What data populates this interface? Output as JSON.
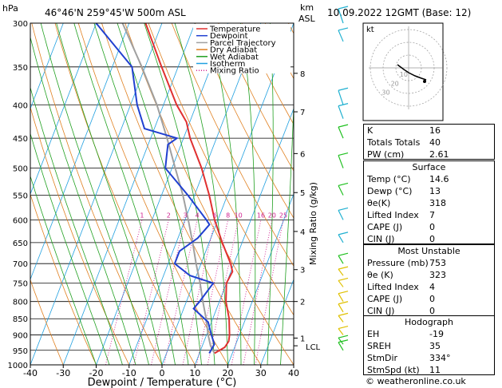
{
  "header": {
    "pressure_unit": "hPa",
    "location": "46°46'N  259°45'W  500m  ASL",
    "km_label": "km",
    "asl_label": "ASL",
    "datetime": "10.09.2022  12GMT  (Base: 12)"
  },
  "legend": [
    "Temperature",
    "Dewpoint",
    "Parcel Trajectory",
    "Dry Adiabat",
    "Wet Adiabat",
    "Isotherm",
    "Mixing Ratio"
  ],
  "colors": {
    "temperature": "#e03030",
    "dewpoint": "#2040d0",
    "parcel": "#a0a0a0",
    "dry_adiabat": "#e08020",
    "wet_adiabat": "#20a020",
    "isotherm": "#20a0e0",
    "mixing_ratio": "#d02090",
    "wind_low": "#e0c000",
    "wind_mid": "#20c020",
    "wind_high": "#20b0d0"
  },
  "chart_data": {
    "type": "line",
    "xlabel": "Dewpoint / Temperature (°C)",
    "ylabel": "hPa",
    "xlim": [
      -40,
      40
    ],
    "x_ticks": [
      -40,
      -30,
      -20,
      -10,
      0,
      10,
      20,
      30,
      40
    ],
    "pressure_ticks": [
      300,
      350,
      400,
      450,
      500,
      550,
      600,
      650,
      700,
      750,
      800,
      850,
      900,
      950,
      1000
    ],
    "km_ticks": [
      {
        "km": "8",
        "p": 358
      },
      {
        "km": "7",
        "p": 410
      },
      {
        "km": "6",
        "p": 475
      },
      {
        "km": "5",
        "p": 545
      },
      {
        "km": "4",
        "p": 625
      },
      {
        "km": "3",
        "p": 715
      },
      {
        "km": "2",
        "p": 800
      },
      {
        "km": "1",
        "p": 910
      }
    ],
    "lcl_label": "LCL",
    "lcl_pressure": 935,
    "mixing_ratio_label": "Mixing Ratio (g/kg)",
    "mixing_ratio_values": [
      "1",
      "2",
      "3",
      "4",
      "6",
      "8",
      "10",
      "16",
      "20",
      "25"
    ],
    "series": [
      {
        "name": "Temperature",
        "points": [
          {
            "p": 960,
            "t": 14.6
          },
          {
            "p": 940,
            "t": 17.0
          },
          {
            "p": 920,
            "t": 17.5
          },
          {
            "p": 900,
            "t": 17.0
          },
          {
            "p": 850,
            "t": 15.0
          },
          {
            "p": 800,
            "t": 12.0
          },
          {
            "p": 750,
            "t": 10.0
          },
          {
            "p": 720,
            "t": 10.5
          },
          {
            "p": 700,
            "t": 9.0
          },
          {
            "p": 650,
            "t": 4.0
          },
          {
            "p": 600,
            "t": -1.0
          },
          {
            "p": 550,
            "t": -5.5
          },
          {
            "p": 500,
            "t": -11.0
          },
          {
            "p": 450,
            "t": -18.0
          },
          {
            "p": 425,
            "t": -21.0
          },
          {
            "p": 400,
            "t": -26.0
          },
          {
            "p": 350,
            "t": -35.0
          },
          {
            "p": 300,
            "t": -45.0
          }
        ]
      },
      {
        "name": "Dewpoint",
        "points": [
          {
            "p": 960,
            "t": 13.0
          },
          {
            "p": 930,
            "t": 13.5
          },
          {
            "p": 900,
            "t": 11.5
          },
          {
            "p": 860,
            "t": 9.0
          },
          {
            "p": 820,
            "t": 3.0
          },
          {
            "p": 800,
            "t": 4.0
          },
          {
            "p": 750,
            "t": 6.0
          },
          {
            "p": 730,
            "t": -2.0
          },
          {
            "p": 700,
            "t": -8.0
          },
          {
            "p": 670,
            "t": -8.0
          },
          {
            "p": 640,
            "t": -4.0
          },
          {
            "p": 610,
            "t": -2.0
          },
          {
            "p": 600,
            "t": -3.5
          },
          {
            "p": 550,
            "t": -12.0
          },
          {
            "p": 500,
            "t": -22.0
          },
          {
            "p": 480,
            "t": -23.0
          },
          {
            "p": 460,
            "t": -24.0
          },
          {
            "p": 450,
            "t": -22.0
          },
          {
            "p": 435,
            "t": -33.0
          },
          {
            "p": 400,
            "t": -38.0
          },
          {
            "p": 350,
            "t": -44.0
          },
          {
            "p": 300,
            "t": -60.0
          }
        ]
      },
      {
        "name": "Parcel Trajectory",
        "points": [
          {
            "p": 960,
            "t": 14.6
          },
          {
            "p": 935,
            "t": 12.5
          },
          {
            "p": 900,
            "t": 10.5
          },
          {
            "p": 850,
            "t": 8.0
          },
          {
            "p": 800,
            "t": 5.0
          },
          {
            "p": 750,
            "t": 2.0
          },
          {
            "p": 700,
            "t": -1.5
          },
          {
            "p": 650,
            "t": -5.0
          },
          {
            "p": 600,
            "t": -9.0
          },
          {
            "p": 550,
            "t": -13.5
          },
          {
            "p": 500,
            "t": -19.0
          },
          {
            "p": 450,
            "t": -25.0
          },
          {
            "p": 400,
            "t": -32.0
          },
          {
            "p": 350,
            "t": -41.0
          },
          {
            "p": 300,
            "t": -52.0
          }
        ]
      }
    ]
  },
  "hodograph": {
    "label": "kt",
    "ring_labels": [
      "10",
      "20",
      "30"
    ]
  },
  "indices": [
    {
      "key": "K",
      "value": "16"
    },
    {
      "key": "Totals Totals",
      "value": "40"
    },
    {
      "key": "PW (cm)",
      "value": "2.61"
    }
  ],
  "surface": {
    "title": "Surface",
    "rows": [
      {
        "key": "Temp (°C)",
        "value": "14.6"
      },
      {
        "key": "Dewp (°C)",
        "value": "13"
      },
      {
        "key": "θe(K)",
        "value": "318"
      },
      {
        "key": "Lifted Index",
        "value": "7"
      },
      {
        "key": "CAPE (J)",
        "value": "0"
      },
      {
        "key": "CIN (J)",
        "value": "0"
      }
    ]
  },
  "most_unstable": {
    "title": "Most Unstable",
    "rows": [
      {
        "key": "Pressure (mb)",
        "value": "753"
      },
      {
        "key": "θe (K)",
        "value": "323"
      },
      {
        "key": "Lifted Index",
        "value": "4"
      },
      {
        "key": "CAPE (J)",
        "value": "0"
      },
      {
        "key": "CIN (J)",
        "value": "0"
      }
    ]
  },
  "hodograph_table": {
    "title": "Hodograph",
    "rows": [
      {
        "key": "EH",
        "value": "-19"
      },
      {
        "key": "SREH",
        "value": "35"
      },
      {
        "key": "StmDir",
        "value": "334°"
      },
      {
        "key": "StmSpd (kt)",
        "value": "11"
      }
    ]
  },
  "copyright": "© weatheronline.co.uk"
}
